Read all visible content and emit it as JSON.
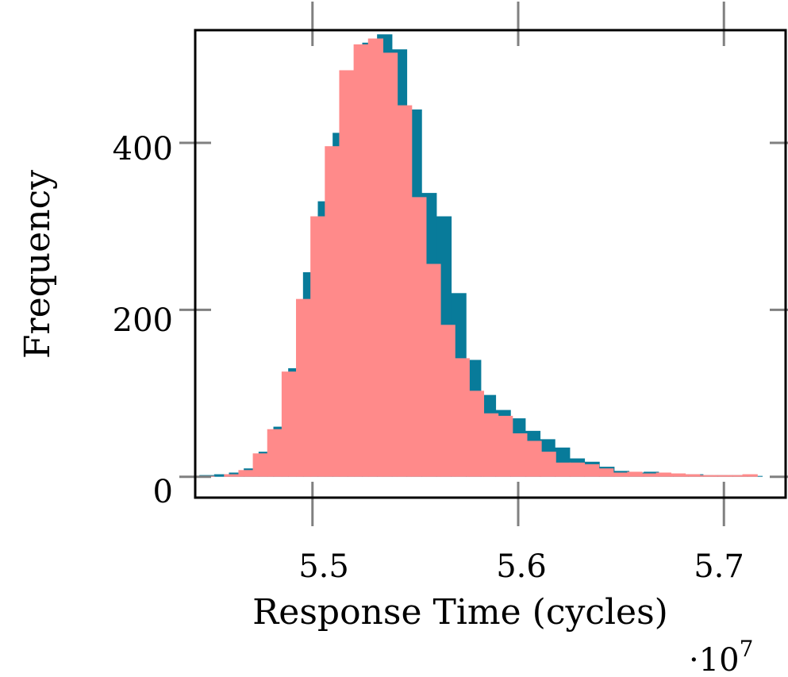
{
  "chart_data": {
    "type": "bar",
    "title": "",
    "xlabel": "Response Time (cycles)",
    "ylabel": "Frequency",
    "x_multiplier_label": "·10",
    "x_multiplier_exponent": "7",
    "xlim": [
      5.443,
      5.73
    ],
    "ylim": [
      -25,
      535
    ],
    "x_unit_scale": 10000000,
    "xticks": [
      5.5,
      5.6,
      5.7
    ],
    "xtick_labels": [
      "5.5",
      "5.6",
      "5.7"
    ],
    "yticks": [
      0,
      200,
      400
    ],
    "ytick_labels": [
      "0",
      "200",
      "400"
    ],
    "grid": false,
    "legend": "none",
    "bin_width": 0.0072,
    "series": [
      {
        "color": "#087b9a",
        "opacity": 1,
        "bins": [
          [
            5.445,
            2
          ],
          [
            5.4522,
            3
          ],
          [
            5.4594,
            5
          ],
          [
            5.4666,
            10
          ],
          [
            5.4738,
            30
          ],
          [
            5.481,
            60
          ],
          [
            5.4882,
            130
          ],
          [
            5.4954,
            245
          ],
          [
            5.5026,
            330
          ],
          [
            5.5098,
            412
          ],
          [
            5.517,
            475
          ],
          [
            5.5242,
            520
          ],
          [
            5.5314,
            530
          ],
          [
            5.5386,
            512
          ],
          [
            5.5458,
            440
          ],
          [
            5.553,
            340
          ],
          [
            5.5602,
            312
          ],
          [
            5.5674,
            220
          ],
          [
            5.5746,
            140
          ],
          [
            5.5818,
            98
          ],
          [
            5.589,
            80
          ],
          [
            5.5962,
            70
          ],
          [
            5.6034,
            55
          ],
          [
            5.6106,
            45
          ],
          [
            5.6178,
            35
          ],
          [
            5.625,
            22
          ],
          [
            5.6322,
            18
          ],
          [
            5.6394,
            12
          ],
          [
            5.6466,
            7
          ],
          [
            5.6538,
            5
          ],
          [
            5.661,
            6
          ],
          [
            5.6682,
            4
          ],
          [
            5.6754,
            3
          ],
          [
            5.6826,
            3
          ],
          [
            5.6898,
            2
          ],
          [
            5.697,
            2
          ],
          [
            5.7042,
            2
          ],
          [
            5.7114,
            1
          ]
        ]
      },
      {
        "color": "#ff8a8a",
        "opacity": 1,
        "bins": [
          [
            5.445,
            1
          ],
          [
            5.457,
            3
          ],
          [
            5.464,
            8
          ],
          [
            5.471,
            28
          ],
          [
            5.478,
            57
          ],
          [
            5.485,
            126
          ],
          [
            5.492,
            213
          ],
          [
            5.499,
            312
          ],
          [
            5.506,
            396
          ],
          [
            5.513,
            487
          ],
          [
            5.52,
            518
          ],
          [
            5.527,
            525
          ],
          [
            5.534,
            508
          ],
          [
            5.541,
            445
          ],
          [
            5.548,
            335
          ],
          [
            5.555,
            255
          ],
          [
            5.562,
            182
          ],
          [
            5.569,
            142
          ],
          [
            5.576,
            103
          ],
          [
            5.583,
            76
          ],
          [
            5.59,
            73
          ],
          [
            5.597,
            52
          ],
          [
            5.604,
            43
          ],
          [
            5.611,
            30
          ],
          [
            5.618,
            17
          ],
          [
            5.625,
            17
          ],
          [
            5.632,
            15
          ],
          [
            5.639,
            10
          ],
          [
            5.646,
            5
          ],
          [
            5.653,
            6
          ],
          [
            5.66,
            4
          ],
          [
            5.667,
            5
          ],
          [
            5.674,
            4
          ],
          [
            5.681,
            3
          ],
          [
            5.688,
            2
          ],
          [
            5.695,
            2
          ],
          [
            5.702,
            2
          ],
          [
            5.709,
            3
          ]
        ]
      }
    ]
  }
}
